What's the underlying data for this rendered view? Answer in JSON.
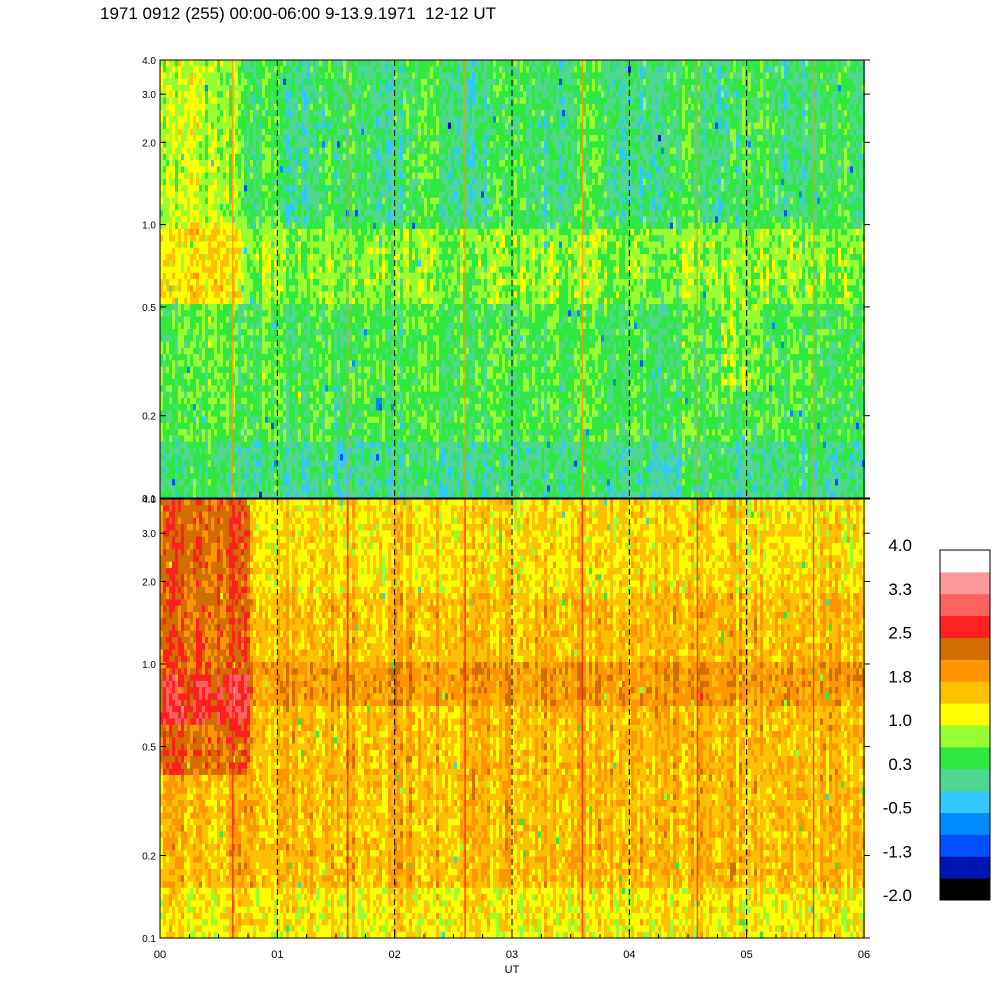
{
  "title": "1971 0912 (255) 00:00-06:00 9-13.9.1971  12-12 UT",
  "chart_data": {
    "type": "heatmap",
    "xlabel": "UT",
    "x_ticks": [
      "00",
      "01",
      "02",
      "03",
      "04",
      "05",
      "06"
    ],
    "x_range_hours": [
      0,
      6
    ],
    "dashed_vertical_lines_at_hours": [
      1,
      2,
      3,
      4,
      5
    ],
    "y_scale": "log",
    "y_range": [
      0.1,
      4.0
    ],
    "panels": [
      {
        "name": "top",
        "y_ticks": [
          "0.1",
          "0.2",
          "0.5",
          "1.0",
          "2.0",
          "3.0",
          "4.0"
        ],
        "dominant_level": "0.3"
      },
      {
        "name": "bottom",
        "y_ticks": [
          "0.1",
          "0.2",
          "0.5",
          "1.0",
          "2.0",
          "3.0",
          "4.0"
        ],
        "dominant_level": "1.8"
      }
    ],
    "colorbar": {
      "tick_labels": [
        "4.0",
        "3.3",
        "2.5",
        "1.8",
        "1.0",
        "0.3",
        "-0.5",
        "-1.3",
        "-2.0"
      ],
      "levels_bottom_to_top": [
        "#000000",
        "#0014b4",
        "#0050ff",
        "#008cff",
        "#30c8ff",
        "#50d890",
        "#30e840",
        "#98ff30",
        "#ffff00",
        "#ffc000",
        "#ff9600",
        "#d26e00",
        "#ff2020",
        "#ff6060",
        "#ff9898",
        "#ffffff"
      ]
    }
  }
}
